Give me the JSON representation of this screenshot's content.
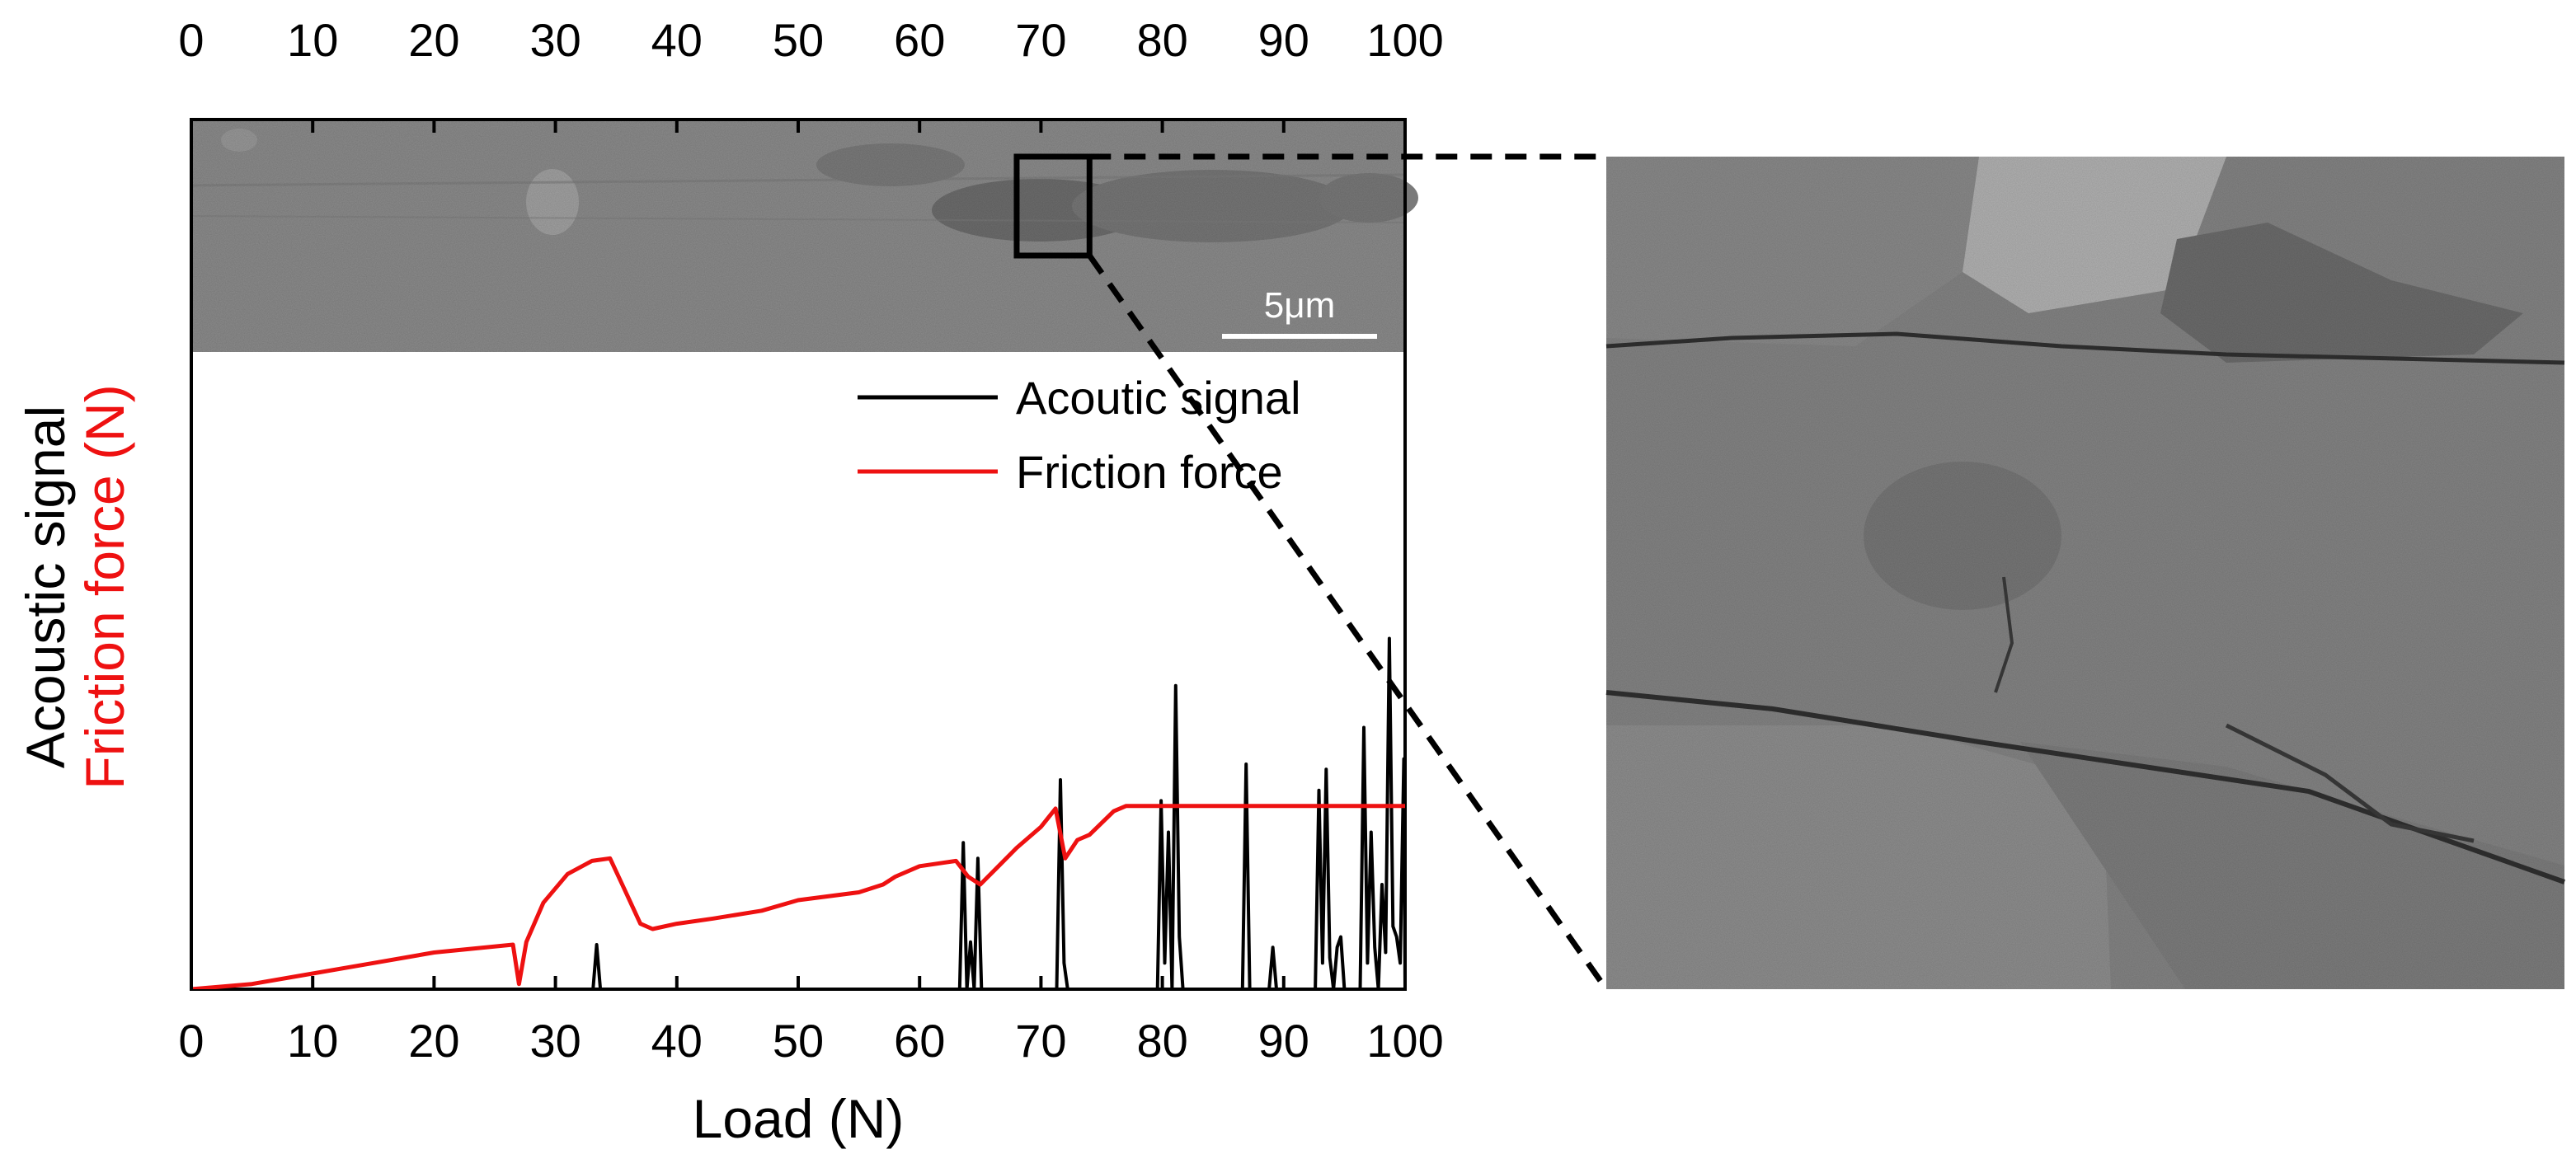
{
  "chart_data": {
    "type": "line",
    "xlabel": "Load (N)",
    "ylabel_black": "Acoustic signal",
    "ylabel_red": "Friction force (N)",
    "xlim": [
      0,
      100
    ],
    "ylim": [
      0,
      1
    ],
    "x_ticks": [
      "0",
      "10",
      "20",
      "30",
      "40",
      "50",
      "60",
      "70",
      "80",
      "90",
      "100"
    ],
    "top_x_ticks": [
      "0",
      "10",
      "20",
      "30",
      "40",
      "50",
      "60",
      "70",
      "80",
      "90",
      "100"
    ],
    "legend": {
      "position": "top-right",
      "entries": [
        "Acoutic signal",
        "Friction force"
      ]
    },
    "colors": {
      "acoustic": "#000000",
      "friction": "#ee1111"
    },
    "series": [
      {
        "name": "Acoutic signal",
        "x": [
          0,
          33.1,
          33.4,
          33.7,
          63.3,
          63.6,
          63.9,
          64.2,
          64.5,
          64.8,
          65.1,
          71.3,
          71.6,
          71.9,
          72.2,
          79.6,
          79.9,
          80.2,
          80.5,
          80.8,
          81.1,
          81.4,
          81.7,
          86.6,
          86.9,
          87.2,
          88.8,
          89.1,
          89.4,
          92.6,
          92.9,
          93.2,
          93.5,
          93.8,
          94.1,
          94.4,
          94.7,
          95.0,
          96.3,
          96.6,
          96.9,
          97.2,
          97.5,
          97.8,
          98.1,
          98.4,
          98.7,
          99.0,
          99.3,
          99.6,
          99.9,
          100
        ],
        "y": [
          0,
          0,
          0.085,
          0,
          0,
          0.28,
          0,
          0.09,
          0,
          0.25,
          0,
          0,
          0.4,
          0.05,
          0,
          0,
          0.36,
          0.05,
          0.3,
          0,
          0.58,
          0.1,
          0,
          0,
          0.43,
          0,
          0,
          0.08,
          0,
          0,
          0.38,
          0.05,
          0.42,
          0.06,
          0,
          0.08,
          0.1,
          0,
          0,
          0.5,
          0.05,
          0.3,
          0.08,
          0,
          0.2,
          0.07,
          0.67,
          0.12,
          0.1,
          0.05,
          0.44,
          0
        ]
      },
      {
        "name": "Friction force",
        "x": [
          0,
          5,
          10,
          15,
          20,
          26.5,
          27,
          27.6,
          29,
          31,
          33,
          34.5,
          35.5,
          37,
          38,
          40,
          43,
          47,
          50,
          55,
          57,
          58,
          60,
          63,
          64,
          65,
          66.5,
          68,
          70,
          71.2,
          72,
          73,
          74,
          76,
          77,
          80,
          85,
          90,
          95,
          100
        ],
        "y": [
          0,
          0.01,
          0.03,
          0.05,
          0.07,
          0.085,
          0.01,
          0.09,
          0.165,
          0.22,
          0.245,
          0.25,
          0.2,
          0.125,
          0.115,
          0.125,
          0.135,
          0.15,
          0.17,
          0.185,
          0.2,
          0.215,
          0.235,
          0.245,
          0.215,
          0.2,
          0.235,
          0.27,
          0.31,
          0.345,
          0.25,
          0.285,
          0.295,
          0.34,
          0.35,
          0.35,
          0.35,
          0.35,
          0.35,
          0.35
        ]
      }
    ]
  },
  "inset": {
    "scale_bar_label": "5μm",
    "zoom_box": {
      "x_from": 68,
      "x_to": 74
    }
  }
}
